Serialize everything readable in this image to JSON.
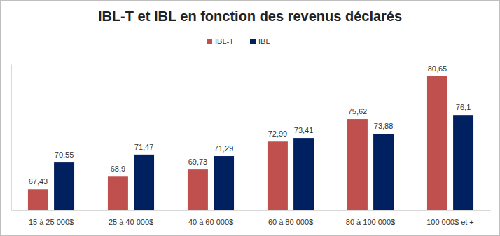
{
  "chart_data": {
    "type": "bar",
    "title": "IBL-T et IBL en fonction des revenus déclarés",
    "categories": [
      "15 à 25 000$",
      "25 à 40 000$",
      "40 à 60 000$",
      "60 à 80 000$",
      "80 à 100 000$",
      "100 000$ et +"
    ],
    "series": [
      {
        "name": "IBL-T",
        "color": "#c0504d",
        "values": [
          67.43,
          68.9,
          69.73,
          72.99,
          75.62,
          80.65
        ],
        "value_labels": [
          "67,43",
          "68,9",
          "69,73",
          "72,99",
          "75,62",
          "80,65"
        ]
      },
      {
        "name": "IBL",
        "color": "#002060",
        "values": [
          70.55,
          71.47,
          71.29,
          73.41,
          73.88,
          76.1
        ],
        "value_labels": [
          "70,55",
          "71,47",
          "71,29",
          "73,41",
          "73,88",
          "76,1"
        ]
      }
    ],
    "ylim": [
      65,
      82
    ],
    "yticks": [],
    "grid": false,
    "legend": "top",
    "data_labels": true,
    "tick_labels": "x"
  }
}
